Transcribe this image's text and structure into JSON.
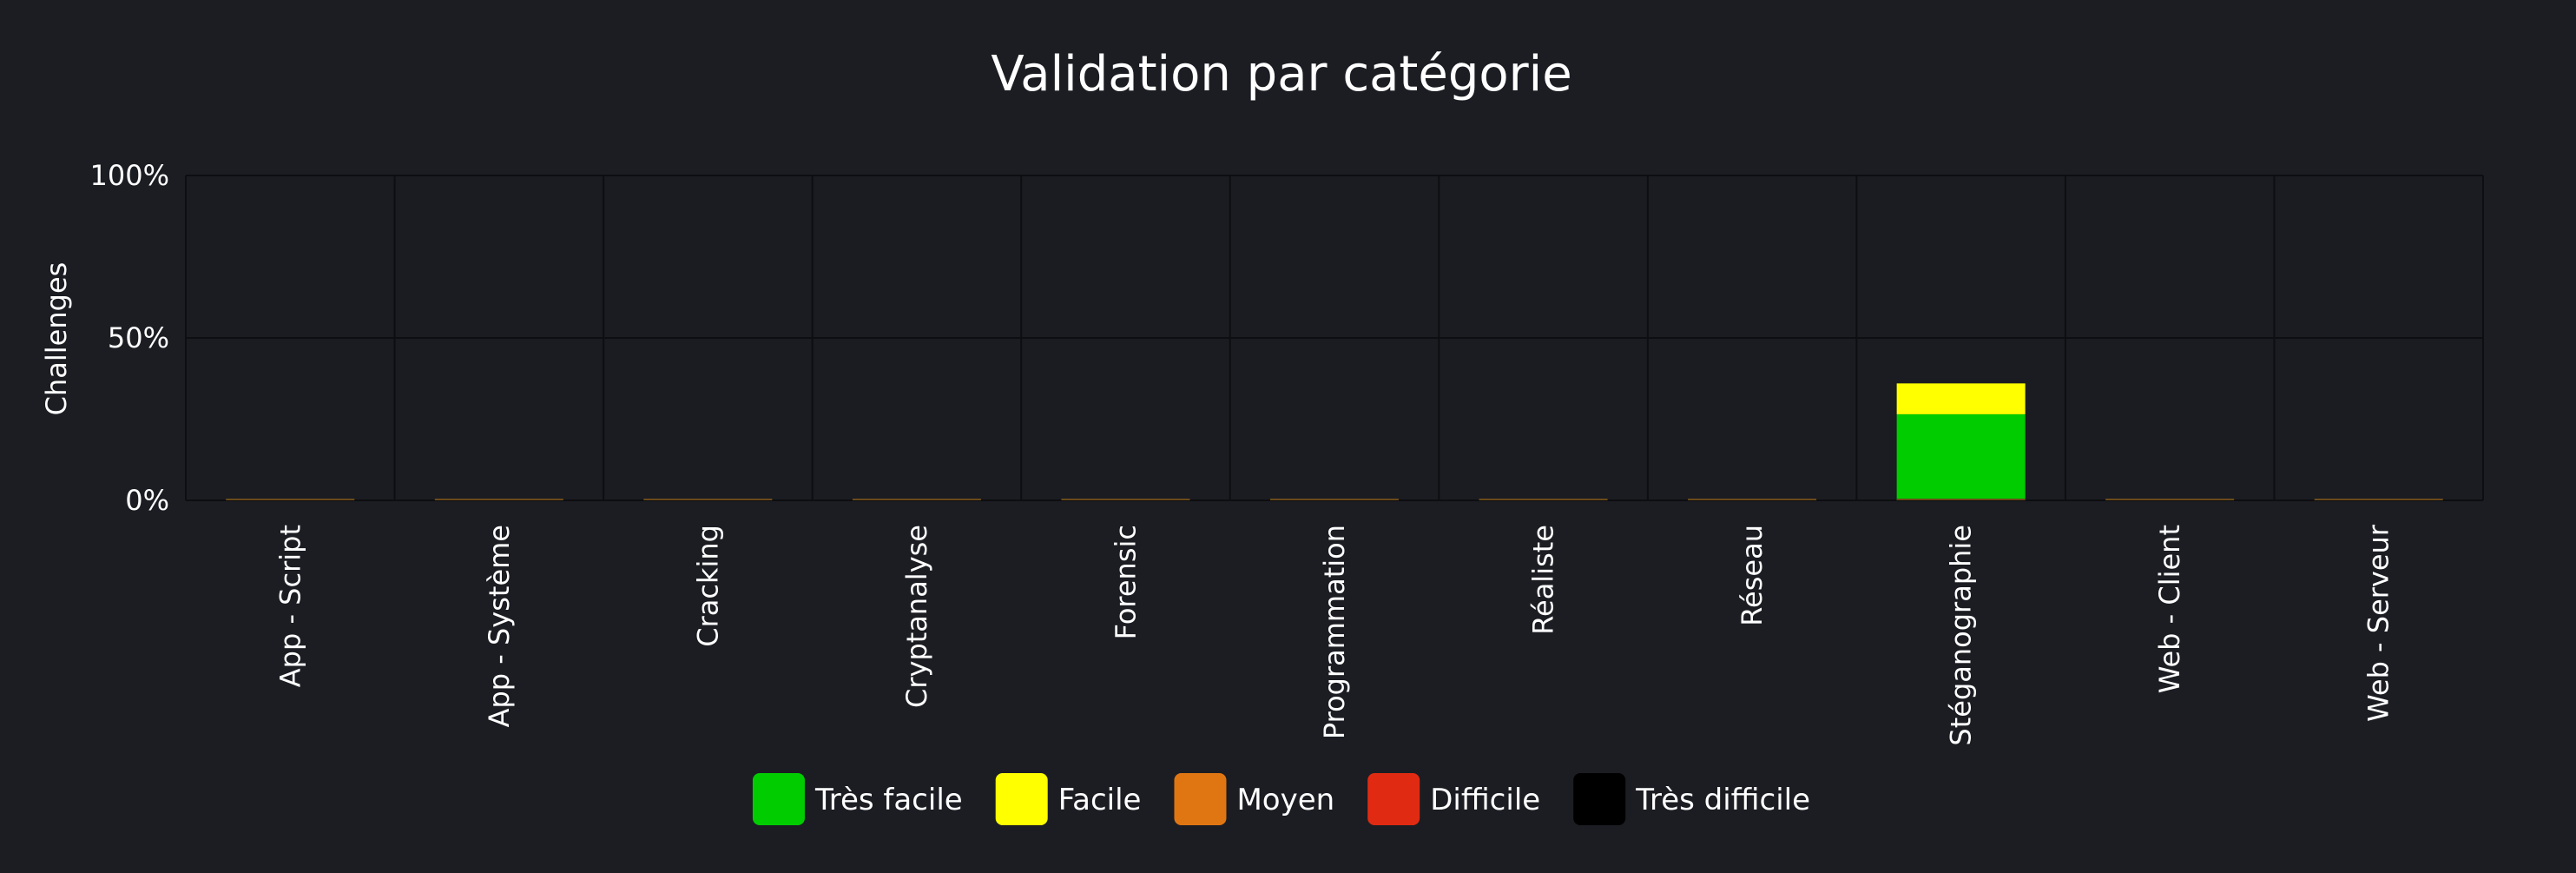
{
  "chart_data": {
    "type": "bar",
    "stacked": true,
    "title": "Validation par catégorie",
    "xlabel": "",
    "ylabel": "Challenges",
    "ylim": [
      0,
      100
    ],
    "yticks": [
      {
        "value": 0,
        "label": "0%"
      },
      {
        "value": 50,
        "label": "50%"
      },
      {
        "value": 100,
        "label": "100%"
      }
    ],
    "categories": [
      "App - Script",
      "App - Système",
      "Cracking",
      "Cryptanalyse",
      "Forensic",
      "Programmation",
      "Réaliste",
      "Réseau",
      "Stéganographie",
      "Web - Client",
      "Web - Serveur"
    ],
    "series": [
      {
        "name": "Très facile",
        "color": "#00cc00",
        "values": [
          0,
          0,
          0,
          0,
          0,
          0,
          0,
          0,
          26.5,
          0,
          0
        ]
      },
      {
        "name": "Facile",
        "color": "#ffff00",
        "values": [
          0,
          0,
          0,
          0,
          0,
          0,
          0,
          0,
          9.5,
          0,
          0
        ]
      },
      {
        "name": "Moyen",
        "color": "#e07612",
        "values": [
          0,
          0,
          0,
          0,
          0,
          0,
          0,
          0,
          0,
          0,
          0
        ]
      },
      {
        "name": "Difficile",
        "color": "#e02b12",
        "values": [
          0,
          0,
          0,
          0,
          0,
          0,
          0,
          0,
          0,
          0,
          0
        ]
      },
      {
        "name": "Très difficile",
        "color": "#000000",
        "values": [
          0,
          0,
          0,
          0,
          0,
          0,
          0,
          0,
          0,
          0,
          0
        ]
      }
    ],
    "legend_position": "bottom-center",
    "grid": true
  },
  "colors": {
    "background": "#1b1d23",
    "plot_background": "#1a1c21",
    "grid": "#0d0e11",
    "text": "#ffffff"
  }
}
